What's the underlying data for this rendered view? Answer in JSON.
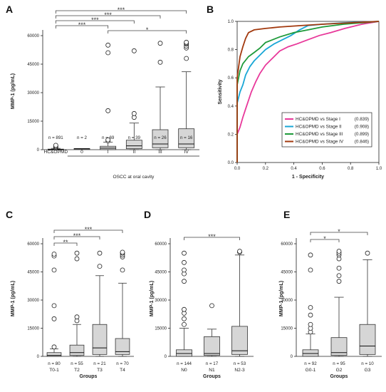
{
  "chart_data": [
    {
      "id": "A",
      "panel_label": "A",
      "type": "box",
      "ylabel": "MMP-1  (pg/mL)",
      "xlabel": "OSCC at oral cavity",
      "yticks": [
        0,
        15000,
        30000,
        45000,
        60000
      ],
      "ylim": [
        0,
        60000
      ],
      "group_divider_after": 0,
      "groups": [
        {
          "label": "HC&OPMD",
          "n_label": "n = 891",
          "q1": 0,
          "median": 150,
          "q3": 300,
          "whisk_low": 0,
          "whisk_high": 700,
          "outliers": [
            1000,
            1400,
            1800,
            2300
          ]
        },
        {
          "label": "0",
          "n_label": "n = 2",
          "q1": 400,
          "median": 500,
          "q3": 600,
          "whisk_low": 400,
          "whisk_high": 600,
          "outliers": []
        },
        {
          "label": "I",
          "n_label": "n = 69",
          "q1": 0,
          "median": 800,
          "q3": 1800,
          "whisk_low": 0,
          "whisk_high": 4000,
          "outliers": [
            4600,
            5200,
            20500,
            51000,
            55000
          ]
        },
        {
          "label": "II",
          "n_label": "n = 39",
          "q1": 500,
          "median": 2000,
          "q3": 5000,
          "whisk_low": 0,
          "whisk_high": 14000,
          "outliers": [
            17000,
            19000,
            52000
          ]
        },
        {
          "label": "III",
          "n_label": "n = 26",
          "q1": 1000,
          "median": 3000,
          "q3": 10500,
          "whisk_low": 0,
          "whisk_high": 33000,
          "outliers": [
            46000,
            56000
          ]
        },
        {
          "label": "IV",
          "n_label": "n = 16",
          "q1": 1000,
          "median": 3000,
          "q3": 11000,
          "whisk_low": 0,
          "whisk_high": 41000,
          "outliers": [
            48000,
            53500,
            54500,
            55500,
            56000,
            56500
          ]
        }
      ],
      "brackets": [
        {
          "from": 0,
          "to": 5,
          "label": "***"
        },
        {
          "from": 0,
          "to": 4,
          "label": "***"
        },
        {
          "from": 0,
          "to": 3,
          "label": "***"
        },
        {
          "from": 0,
          "to": 2,
          "label": "***"
        },
        {
          "from": 2,
          "to": 5,
          "label": "*"
        }
      ]
    },
    {
      "id": "B",
      "panel_label": "B",
      "type": "line",
      "xlabel": "1 - Specificity",
      "ylabel": "Sensitivity",
      "xlim": [
        0,
        1
      ],
      "ylim": [
        0,
        1
      ],
      "xticks": [
        "0.0",
        "0.2",
        "0.4",
        "0.6",
        "0.8",
        "1.0"
      ],
      "yticks": [
        "0.0",
        "0.2",
        "0.4",
        "0.6",
        "0.8",
        "1.0"
      ],
      "series": [
        {
          "name": "HC&OPMD vs Stage I",
          "auc": "(0.839)",
          "color": "#e8389a",
          "points": [
            [
              0,
              0
            ],
            [
              0,
              0.2
            ],
            [
              0.02,
              0.25
            ],
            [
              0.04,
              0.32
            ],
            [
              0.06,
              0.38
            ],
            [
              0.08,
              0.44
            ],
            [
              0.1,
              0.5
            ],
            [
              0.13,
              0.57
            ],
            [
              0.16,
              0.63
            ],
            [
              0.2,
              0.69
            ],
            [
              0.25,
              0.74
            ],
            [
              0.3,
              0.79
            ],
            [
              0.36,
              0.82
            ],
            [
              0.42,
              0.84
            ],
            [
              0.5,
              0.87
            ],
            [
              0.58,
              0.9
            ],
            [
              0.66,
              0.92
            ],
            [
              0.76,
              0.95
            ],
            [
              0.88,
              0.98
            ],
            [
              1,
              1
            ]
          ]
        },
        {
          "name": "HC&OPMD vs Stage II",
          "auc": "(0.908)",
          "color": "#1aa7d6",
          "points": [
            [
              0,
              0
            ],
            [
              0,
              0.42
            ],
            [
              0.02,
              0.5
            ],
            [
              0.04,
              0.55
            ],
            [
              0.06,
              0.62
            ],
            [
              0.09,
              0.68
            ],
            [
              0.12,
              0.72
            ],
            [
              0.16,
              0.76
            ],
            [
              0.2,
              0.8
            ],
            [
              0.26,
              0.84
            ],
            [
              0.32,
              0.87
            ],
            [
              0.38,
              0.9
            ],
            [
              0.44,
              0.94
            ],
            [
              0.5,
              0.97
            ],
            [
              0.6,
              0.98
            ],
            [
              0.75,
              0.99
            ],
            [
              1,
              1
            ]
          ]
        },
        {
          "name": "HC&OPMD vs Stage III",
          "auc": "(0.899)",
          "color": "#1e9a3a",
          "points": [
            [
              0,
              0
            ],
            [
              0,
              0.55
            ],
            [
              0.02,
              0.65
            ],
            [
              0.04,
              0.7
            ],
            [
              0.08,
              0.75
            ],
            [
              0.12,
              0.78
            ],
            [
              0.16,
              0.81
            ],
            [
              0.2,
              0.85
            ],
            [
              0.3,
              0.89
            ],
            [
              0.4,
              0.92
            ],
            [
              0.5,
              0.94
            ],
            [
              0.6,
              0.96
            ],
            [
              0.75,
              0.98
            ],
            [
              1,
              1
            ]
          ]
        },
        {
          "name": "HC&OPMD vs Stage IV",
          "auc": "(0.846)",
          "color": "#a2390e",
          "points": [
            [
              0,
              0
            ],
            [
              0,
              0.6
            ],
            [
              0.02,
              0.75
            ],
            [
              0.04,
              0.82
            ],
            [
              0.06,
              0.88
            ],
            [
              0.08,
              0.92
            ],
            [
              0.12,
              0.94
            ],
            [
              0.2,
              0.95
            ],
            [
              0.3,
              0.96
            ],
            [
              0.45,
              0.97
            ],
            [
              0.6,
              0.98
            ],
            [
              0.8,
              0.99
            ],
            [
              1,
              1
            ]
          ]
        }
      ],
      "legend_position": "lower-right"
    },
    {
      "id": "C",
      "panel_label": "C",
      "type": "box",
      "ylabel": "MMP-1  (pg/mL)",
      "xlabel": "Groups",
      "yticks": [
        0,
        15000,
        30000,
        45000,
        60000
      ],
      "ylim": [
        0,
        60000
      ],
      "groups": [
        {
          "label": "T0-1",
          "n_label": "n = 80",
          "q1": 0,
          "median": 500,
          "q3": 2000,
          "whisk_low": 0,
          "whisk_high": 4000,
          "outliers": [
            5000,
            20000,
            27000,
            46000,
            53500,
            54500
          ]
        },
        {
          "label": "T2",
          "n_label": "n = 55",
          "q1": 500,
          "median": 2000,
          "q3": 6000,
          "whisk_low": 0,
          "whisk_high": 17000,
          "outliers": [
            19000,
            21000,
            52000,
            55000
          ]
        },
        {
          "label": "T3",
          "n_label": "n = 21",
          "q1": 1000,
          "median": 4500,
          "q3": 17000,
          "whisk_low": 0,
          "whisk_high": 43000,
          "outliers": [
            48000,
            55000
          ]
        },
        {
          "label": "T4",
          "n_label": "n = 70",
          "q1": 1000,
          "median": 2500,
          "q3": 9500,
          "whisk_low": 0,
          "whisk_high": 39000,
          "outliers": [
            46000,
            53000,
            54000,
            55000,
            55500
          ]
        }
      ],
      "brackets": [
        {
          "from": 0,
          "to": 3,
          "label": "***"
        },
        {
          "from": 0,
          "to": 2,
          "label": "***"
        },
        {
          "from": 0,
          "to": 1,
          "label": "**"
        }
      ]
    },
    {
      "id": "D",
      "panel_label": "D",
      "type": "box",
      "ylabel": "MMP-1  (pg/mL)",
      "xlabel": "Groups",
      "yticks": [
        0,
        15000,
        30000,
        45000,
        60000
      ],
      "ylim": [
        0,
        60000
      ],
      "groups": [
        {
          "label": "N0",
          "n_label": "n = 144",
          "q1": 0,
          "median": 1500,
          "q3": 3500,
          "whisk_low": 0,
          "whisk_high": 15000,
          "outliers": [
            17000,
            20000,
            23000,
            25000,
            40000,
            44000,
            46000,
            50000,
            55000
          ]
        },
        {
          "label": "N1",
          "n_label": "n = 17",
          "q1": 500,
          "median": 1500,
          "q3": 10500,
          "whisk_low": 0,
          "whisk_high": 14500,
          "outliers": [
            27000
          ]
        },
        {
          "label": "N2-3",
          "n_label": "n = 53",
          "q1": 1000,
          "median": 3000,
          "q3": 16000,
          "whisk_low": 0,
          "whisk_high": 54000,
          "outliers": [
            55500,
            56000
          ]
        }
      ],
      "brackets": [
        {
          "from": 0,
          "to": 2,
          "label": "***"
        }
      ]
    },
    {
      "id": "E",
      "panel_label": "E",
      "type": "box",
      "ylabel": "MMP-1  (pg/mL)",
      "xlabel": "Groups",
      "yticks": [
        0,
        15000,
        30000,
        45000,
        60000
      ],
      "ylim": [
        0,
        60000
      ],
      "groups": [
        {
          "label": "G0-1",
          "n_label": "n = 92",
          "q1": 0,
          "median": 1500,
          "q3": 3500,
          "whisk_low": 0,
          "whisk_high": 12000,
          "outliers": [
            13000,
            15000,
            17000,
            22000,
            26000,
            46000,
            54000
          ]
        },
        {
          "label": "G2",
          "n_label": "n = 95",
          "q1": 500,
          "median": 2000,
          "q3": 10000,
          "whisk_low": 0,
          "whisk_high": 31500,
          "outliers": [
            40000,
            43000,
            47000,
            52000,
            54000,
            55000,
            56000
          ]
        },
        {
          "label": "G3",
          "n_label": "n = 10",
          "q1": 1000,
          "median": 5500,
          "q3": 17000,
          "whisk_low": 0,
          "whisk_high": 51500,
          "outliers": [
            55000
          ]
        }
      ],
      "brackets": [
        {
          "from": 0,
          "to": 2,
          "label": "*"
        },
        {
          "from": 0,
          "to": 1,
          "label": "*"
        }
      ]
    }
  ]
}
